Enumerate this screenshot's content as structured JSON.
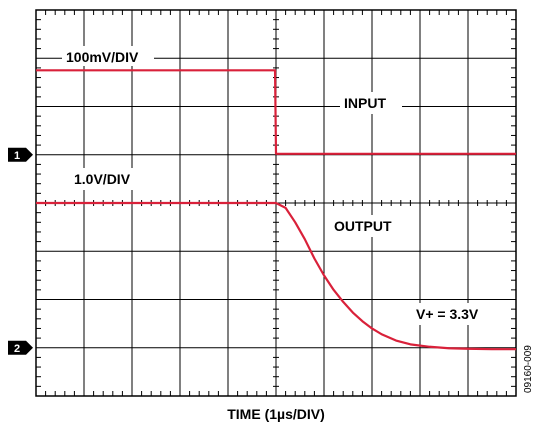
{
  "chart_data": {
    "type": "line",
    "xlabel": "TIME (1µs/DIV)",
    "grid": true,
    "x_divisions": 10,
    "y_divisions": 8,
    "x_unit": "µs",
    "x_range": [
      0,
      10
    ],
    "annotations": {
      "ch1_scale": "100mV/DIV",
      "ch2_scale": "1.0V/DIV",
      "input_label": "INPUT",
      "output_label": "OUTPUT",
      "supply_label": "V+ = 3.3V",
      "figure_id": "09160-009"
    },
    "markers": [
      {
        "label": "1",
        "channel": "ch1"
      },
      {
        "label": "2",
        "channel": "ch2"
      }
    ],
    "series": [
      {
        "name": "INPUT",
        "color": "#d9213a",
        "unit": "div",
        "x": [
          0,
          4.98,
          5.0,
          10
        ],
        "y": [
          6.75,
          6.75,
          5.02,
          5.02
        ]
      },
      {
        "name": "OUTPUT",
        "color": "#d9213a",
        "unit": "div",
        "x": [
          0,
          5.0,
          5.2,
          5.4,
          5.6,
          5.8,
          6.0,
          6.2,
          6.4,
          6.6,
          6.8,
          7.0,
          7.2,
          7.5,
          7.8,
          8.2,
          8.6,
          9.0,
          9.5,
          10.0
        ],
        "y": [
          4.0,
          4.0,
          3.9,
          3.6,
          3.25,
          2.85,
          2.5,
          2.2,
          1.95,
          1.73,
          1.55,
          1.4,
          1.28,
          1.15,
          1.07,
          1.02,
          0.99,
          0.98,
          0.97,
          0.97
        ]
      }
    ],
    "channel_markers_y": {
      "ch1": 5.0,
      "ch2": 1.0
    }
  }
}
